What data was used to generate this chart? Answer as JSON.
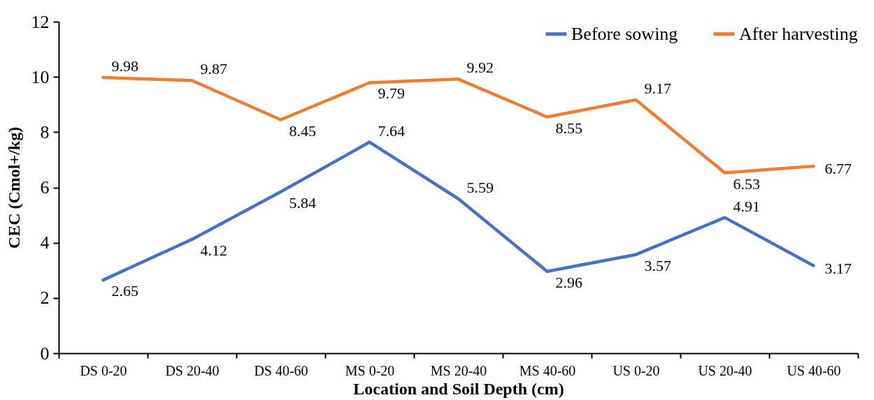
{
  "chart_data": {
    "type": "line",
    "xlabel": "Location and Soil Depth (cm)",
    "ylabel": "CEC (Cmol+/kg)",
    "categories": [
      "DS 0-20",
      "DS 20-40",
      "DS 40-60",
      "MS 0-20",
      "MS 20-40",
      "MS 40-60",
      "US 0-20",
      "US 20-40",
      "US 40-60"
    ],
    "series": [
      {
        "name": "Before sowing",
        "color": "#4472c4",
        "values": [
          2.65,
          4.12,
          5.84,
          7.64,
          5.59,
          2.96,
          3.57,
          4.91,
          3.17
        ]
      },
      {
        "name": "After harvesting",
        "color": "#ed7d31",
        "values": [
          9.98,
          9.87,
          8.45,
          9.79,
          9.92,
          8.55,
          9.17,
          6.53,
          6.77
        ]
      }
    ],
    "ylim": [
      0,
      12
    ],
    "yticks": [
      0,
      2,
      4,
      6,
      8,
      10,
      12
    ],
    "grid": false,
    "legend": "top right",
    "data_labels": true
  }
}
